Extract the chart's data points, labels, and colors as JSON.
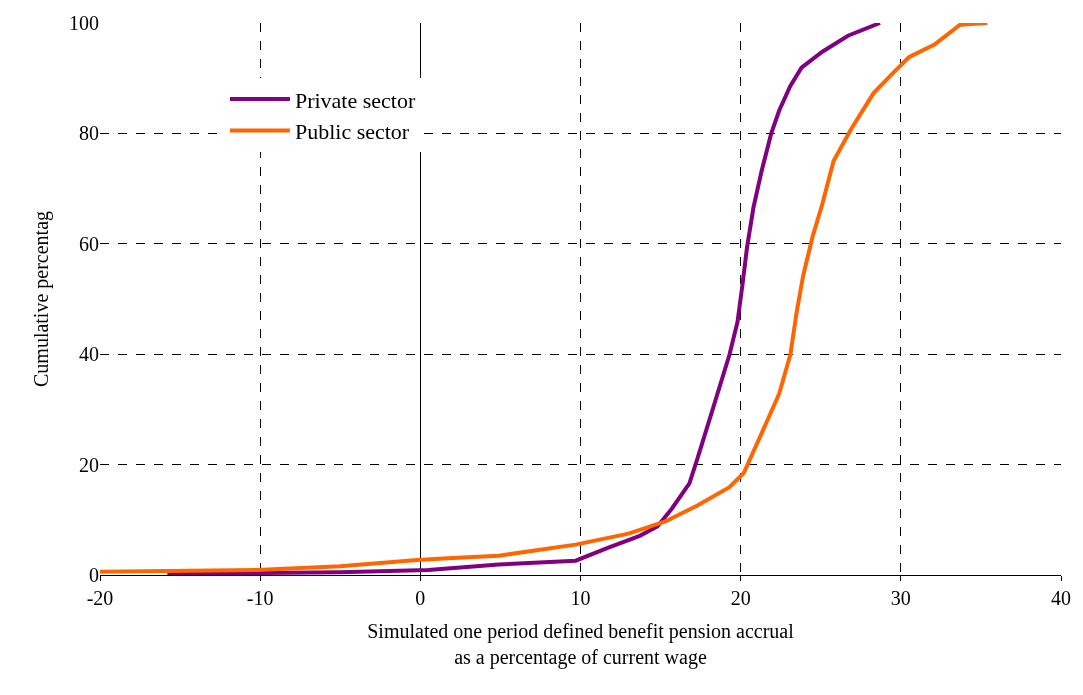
{
  "chart_data": {
    "type": "line",
    "xlabel": "Simulated one period defined benefit pension accrual\nas a percentage of current wage",
    "ylabel": "Cumulative percentag",
    "xlim": [
      -20,
      40
    ],
    "xticks": [
      -20,
      -10,
      0,
      10,
      20,
      30,
      40
    ],
    "ylim": [
      0,
      100
    ],
    "yticks": [
      0,
      20,
      40,
      60,
      80,
      100
    ],
    "grid": true,
    "legend": "top left",
    "marker": "none",
    "line_style": "solid",
    "series": [
      {
        "name": "Private sector",
        "color": "#800080",
        "x": [
          -15.8,
          -5,
          0.5,
          4.9,
          9.7,
          11.7,
          13.7,
          14.8,
          15.7,
          16.8,
          17.3,
          18.2,
          19.3,
          19.8,
          20.1,
          20.4,
          20.8,
          21.3,
          21.9,
          22.4,
          23.1,
          23.8,
          25.1,
          26.7,
          28.7
        ],
        "values": [
          0.2,
          0.5,
          0.9,
          1.9,
          2.6,
          4.9,
          7.1,
          8.8,
          12.0,
          16.6,
          21.1,
          29.5,
          39.9,
          45.8,
          52.3,
          59.4,
          66.6,
          73.1,
          79.9,
          84.1,
          88.6,
          91.9,
          94.8,
          97.7,
          100
        ]
      },
      {
        "name": "Public sector",
        "color": "#ff6600",
        "x": [
          -20,
          -10.2,
          -5,
          -0.2,
          2,
          4.9,
          9.7,
          13.0,
          15.3,
          17.3,
          19.3,
          20.2,
          21.3,
          22.4,
          23.1,
          23.5,
          23.9,
          24.5,
          25.1,
          25.8,
          26.9,
          28.3,
          29.4,
          30.5,
          32.1,
          33.7,
          35.4
        ],
        "values": [
          0.6,
          0.9,
          1.6,
          2.7,
          3.1,
          3.5,
          5.5,
          7.5,
          9.7,
          12.6,
          15.9,
          18.5,
          25.6,
          32.8,
          39.9,
          47.7,
          54.2,
          61.4,
          67.2,
          75.0,
          80.8,
          87.3,
          90.6,
          93.8,
          96.1,
          99.7,
          100
        ]
      }
    ]
  }
}
